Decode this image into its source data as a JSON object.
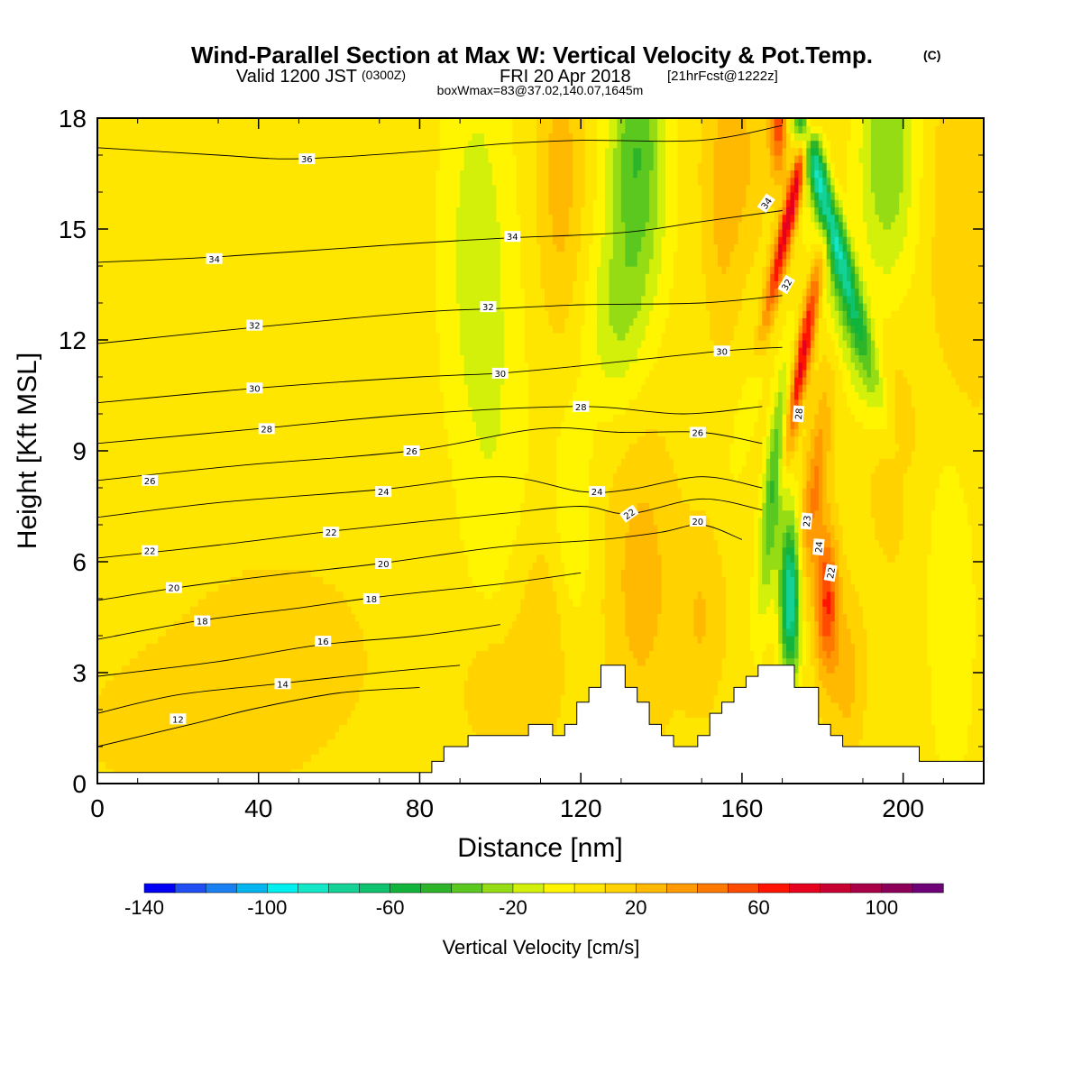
{
  "title": {
    "main": "Wind-Parallel Section at Max W: Vertical Velocity & Pot.Temp.",
    "main_mark": "(C)",
    "valid_a": "Valid 1200 JST",
    "valid_b": "(0300Z)",
    "valid_c": "FRI 20 Apr 2018",
    "valid_d": "[21hrFcst@1222z]",
    "box": "boxWmax=83@37.02,140.07,1645m"
  },
  "chart_data": {
    "type": "heatmap",
    "xlabel": "Distance [nm]",
    "ylabel": "Height [Kft MSL]",
    "xlim": [
      0,
      220
    ],
    "ylim": [
      0,
      18
    ],
    "xticks": [
      0,
      40,
      80,
      120,
      160,
      200
    ],
    "xtick_labels": [
      "0",
      "40",
      "80",
      "120",
      "160",
      "200"
    ],
    "yticks": [
      0,
      3,
      6,
      9,
      12,
      15,
      18
    ],
    "ytick_labels": [
      "0",
      "3",
      "6",
      "9",
      "12",
      "15",
      "18"
    ],
    "colorbar": {
      "label": "Vertical Velocity [cm/s]",
      "levels": [
        -140,
        -130,
        -120,
        -110,
        -100,
        -90,
        -80,
        -70,
        -60,
        -50,
        -40,
        -30,
        -20,
        -10,
        0,
        10,
        20,
        30,
        40,
        50,
        60,
        70,
        80,
        90,
        100,
        110,
        120
      ],
      "colors": [
        "#0000f5",
        "#1f4ef2",
        "#1a7ff0",
        "#05b5f0",
        "#00f0f0",
        "#14e6c8",
        "#14d296",
        "#0fc36e",
        "#12b43c",
        "#2db428",
        "#5ac81e",
        "#96dc14",
        "#d2f00a",
        "#fff500",
        "#ffe600",
        "#ffd200",
        "#ffb900",
        "#ff9b00",
        "#ff7800",
        "#ff4b00",
        "#ff1400",
        "#e6001e",
        "#c80032",
        "#aa0046",
        "#8c005a",
        "#6e0078"
      ],
      "tick_values": [
        -140,
        -100,
        -60,
        -20,
        20,
        60,
        100
      ],
      "tick_labels": [
        "-140",
        "-100",
        "-60",
        "-20",
        "20",
        "60",
        "100"
      ]
    },
    "terrain": [
      [
        0,
        0.3
      ],
      [
        83,
        0.3
      ],
      [
        83,
        0.6
      ],
      [
        86,
        0.6
      ],
      [
        86,
        1.0
      ],
      [
        92,
        1.0
      ],
      [
        92,
        1.3
      ],
      [
        107,
        1.3
      ],
      [
        107,
        1.6
      ],
      [
        113,
        1.6
      ],
      [
        113,
        1.3
      ],
      [
        116,
        1.3
      ],
      [
        116,
        1.6
      ],
      [
        119,
        1.6
      ],
      [
        119,
        2.2
      ],
      [
        122,
        2.2
      ],
      [
        122,
        2.6
      ],
      [
        125,
        2.6
      ],
      [
        125,
        3.2
      ],
      [
        131,
        3.2
      ],
      [
        131,
        2.6
      ],
      [
        134,
        2.6
      ],
      [
        134,
        2.2
      ],
      [
        137,
        2.2
      ],
      [
        137,
        1.6
      ],
      [
        140,
        1.6
      ],
      [
        140,
        1.3
      ],
      [
        143,
        1.3
      ],
      [
        143,
        1.0
      ],
      [
        149,
        1.0
      ],
      [
        149,
        1.3
      ],
      [
        152,
        1.3
      ],
      [
        152,
        1.9
      ],
      [
        155,
        1.9
      ],
      [
        155,
        2.2
      ],
      [
        158,
        2.2
      ],
      [
        158,
        2.6
      ],
      [
        161,
        2.6
      ],
      [
        161,
        2.9
      ],
      [
        164,
        2.9
      ],
      [
        164,
        3.2
      ],
      [
        173,
        3.2
      ],
      [
        173,
        2.6
      ],
      [
        179,
        2.6
      ],
      [
        179,
        1.6
      ],
      [
        182,
        1.6
      ],
      [
        182,
        1.3
      ],
      [
        185,
        1.3
      ],
      [
        185,
        1.0
      ],
      [
        204,
        1.0
      ],
      [
        204,
        0.6
      ],
      [
        220,
        0.6
      ]
    ],
    "velocity_background": 5,
    "velocity_features": [
      {
        "x": 172,
        "y": 5.0,
        "sx": 1.8,
        "sy": 1.5,
        "w": -90,
        "tilt": 0.0
      },
      {
        "x": 168,
        "y": 8.0,
        "sx": 1.8,
        "sy": 2.2,
        "w": -55,
        "tilt": 0.9
      },
      {
        "x": 162,
        "y": 10.5,
        "sx": 1.8,
        "sy": 1.5,
        "w": -20,
        "tilt": 1.8
      },
      {
        "x": 181,
        "y": 5.0,
        "sx": 2.0,
        "sy": 1.4,
        "w": 55,
        "tilt": 0.0
      },
      {
        "x": 178,
        "y": 8.0,
        "sx": 2.0,
        "sy": 2.0,
        "w": 35,
        "tilt": 1.0
      },
      {
        "x": 175,
        "y": 11.5,
        "sx": 1.4,
        "sy": 2.2,
        "w": 70,
        "tilt": 1.6
      },
      {
        "x": 172,
        "y": 15.5,
        "sx": 1.4,
        "sy": 2.5,
        "w": 75,
        "tilt": 2.0
      },
      {
        "x": 169,
        "y": 17.8,
        "sx": 1.5,
        "sy": 1.0,
        "w": 50,
        "tilt": 0.0
      },
      {
        "x": 180,
        "y": 16.0,
        "sx": 2.0,
        "sy": 3.0,
        "w": -85,
        "tilt": -2.5
      },
      {
        "x": 186,
        "y": 12.5,
        "sx": 3.5,
        "sy": 2.2,
        "w": -25,
        "tilt": -2.5
      },
      {
        "x": 196,
        "y": 17.0,
        "sx": 5.0,
        "sy": 2.5,
        "w": -35,
        "tilt": 0.0
      },
      {
        "x": 134,
        "y": 17.0,
        "sx": 5.0,
        "sy": 3.0,
        "w": -45,
        "tilt": 0.0
      },
      {
        "x": 128,
        "y": 12.5,
        "sx": 5.0,
        "sy": 1.8,
        "w": -20,
        "tilt": 0.0
      },
      {
        "x": 94,
        "y": 14.5,
        "sx": 6.0,
        "sy": 4.0,
        "w": -20,
        "tilt": 0.0
      },
      {
        "x": 115,
        "y": 16.5,
        "sx": 4.0,
        "sy": 3.0,
        "w": 20,
        "tilt": 0.0
      },
      {
        "x": 158,
        "y": 17.0,
        "sx": 5.0,
        "sy": 2.0,
        "w": 20,
        "tilt": 0.0
      },
      {
        "x": 155,
        "y": 14.0,
        "sx": 3.0,
        "sy": 2.0,
        "w": 10,
        "tilt": 0.0
      },
      {
        "x": 118,
        "y": 7.0,
        "sx": 3.5,
        "sy": 2.5,
        "w": -15,
        "tilt": 0.0
      },
      {
        "x": 100,
        "y": 8.0,
        "sx": 6.0,
        "sy": 4.0,
        "w": -10,
        "tilt": 0.0
      },
      {
        "x": 135,
        "y": 5.5,
        "sx": 6.0,
        "sy": 3.0,
        "w": 20,
        "tilt": 0.0
      },
      {
        "x": 150,
        "y": 4.5,
        "sx": 4.0,
        "sy": 1.8,
        "w": 15,
        "tilt": 0.0
      },
      {
        "x": 110,
        "y": 4.0,
        "sx": 6.0,
        "sy": 2.0,
        "w": 15,
        "tilt": 0.0
      },
      {
        "x": 98,
        "y": 2.5,
        "sx": 5.0,
        "sy": 1.2,
        "w": 15,
        "tilt": 0.0
      },
      {
        "x": 45,
        "y": 3.5,
        "sx": 18.0,
        "sy": 2.0,
        "w": 10,
        "tilt": 0.0
      },
      {
        "x": 20,
        "y": 1.5,
        "sx": 18.0,
        "sy": 1.5,
        "w": 10,
        "tilt": 0.0
      },
      {
        "x": 212,
        "y": 5.0,
        "sx": 4.0,
        "sy": 3.5,
        "w": -15,
        "tilt": 0.0
      },
      {
        "x": 215,
        "y": 15.0,
        "sx": 6.0,
        "sy": 4.0,
        "w": 15,
        "tilt": 0.0
      },
      {
        "x": 197,
        "y": 9.0,
        "sx": 4.0,
        "sy": 2.0,
        "w": 15,
        "tilt": 0.0
      },
      {
        "x": 186,
        "y": 3.0,
        "sx": 3.0,
        "sy": 1.5,
        "w": 20,
        "tilt": 0.0
      }
    ],
    "theta_lines": [
      {
        "value": 12,
        "points": [
          [
            0,
            1.0
          ],
          [
            25,
            1.65
          ],
          [
            40,
            2.05
          ],
          [
            60,
            2.45
          ],
          [
            80,
            2.6
          ]
        ]
      },
      {
        "value": 14,
        "points": [
          [
            0,
            1.9
          ],
          [
            20,
            2.4
          ],
          [
            45,
            2.7
          ],
          [
            70,
            3.0
          ],
          [
            90,
            3.2
          ]
        ]
      },
      {
        "value": 16,
        "points": [
          [
            0,
            2.9
          ],
          [
            30,
            3.3
          ],
          [
            55,
            3.75
          ],
          [
            80,
            4.0
          ],
          [
            100,
            4.3
          ]
        ]
      },
      {
        "value": 18,
        "points": [
          [
            0,
            3.9
          ],
          [
            25,
            4.4
          ],
          [
            50,
            4.75
          ],
          [
            70,
            5.05
          ],
          [
            100,
            5.4
          ],
          [
            120,
            5.7
          ]
        ]
      },
      {
        "value": 20,
        "points": [
          [
            0,
            4.95
          ],
          [
            20,
            5.3
          ],
          [
            45,
            5.65
          ],
          [
            70,
            5.95
          ],
          [
            100,
            6.4
          ],
          [
            125,
            6.6
          ],
          [
            140,
            6.8
          ],
          [
            150,
            7.0
          ],
          [
            160,
            6.6
          ]
        ]
      },
      {
        "value": 22,
        "points": [
          [
            0,
            6.1
          ],
          [
            30,
            6.45
          ],
          [
            60,
            6.85
          ],
          [
            100,
            7.3
          ],
          [
            120,
            7.5
          ],
          [
            132,
            7.3
          ],
          [
            150,
            7.7
          ],
          [
            165,
            7.4
          ]
        ]
      },
      {
        "value": 24,
        "points": [
          [
            0,
            7.2
          ],
          [
            30,
            7.6
          ],
          [
            70,
            7.95
          ],
          [
            100,
            8.3
          ],
          [
            120,
            7.9
          ],
          [
            132,
            7.95
          ],
          [
            150,
            8.3
          ],
          [
            165,
            8.0
          ]
        ]
      },
      {
        "value": 26,
        "points": [
          [
            0,
            8.2
          ],
          [
            35,
            8.6
          ],
          [
            78,
            9.0
          ],
          [
            110,
            9.6
          ],
          [
            130,
            9.5
          ],
          [
            150,
            9.5
          ],
          [
            165,
            9.2
          ]
        ]
      },
      {
        "value": 28,
        "points": [
          [
            0,
            9.2
          ],
          [
            40,
            9.6
          ],
          [
            80,
            10.0
          ],
          [
            120,
            10.2
          ],
          [
            145,
            10.0
          ],
          [
            165,
            10.2
          ]
        ]
      },
      {
        "value": 30,
        "points": [
          [
            0,
            10.3
          ],
          [
            40,
            10.7
          ],
          [
            80,
            11.0
          ],
          [
            100,
            11.1
          ],
          [
            120,
            11.3
          ],
          [
            155,
            11.7
          ],
          [
            170,
            11.8
          ]
        ]
      },
      {
        "value": 32,
        "points": [
          [
            0,
            11.9
          ],
          [
            40,
            12.35
          ],
          [
            80,
            12.75
          ],
          [
            100,
            12.85
          ],
          [
            120,
            12.95
          ],
          [
            150,
            13.0
          ],
          [
            170,
            13.2
          ]
        ]
      },
      {
        "value": 34,
        "points": [
          [
            0,
            14.1
          ],
          [
            30,
            14.25
          ],
          [
            70,
            14.55
          ],
          [
            100,
            14.75
          ],
          [
            130,
            14.9
          ],
          [
            150,
            15.2
          ],
          [
            170,
            15.5
          ]
        ]
      },
      {
        "value": 36,
        "points": [
          [
            0,
            17.2
          ],
          [
            30,
            17.0
          ],
          [
            50,
            16.9
          ],
          [
            80,
            17.1
          ],
          [
            100,
            17.3
          ],
          [
            120,
            17.4
          ],
          [
            150,
            17.4
          ],
          [
            170,
            17.8
          ]
        ]
      }
    ],
    "theta_labels": [
      {
        "text": "36",
        "x": 52,
        "y": 16.9,
        "angle": 0
      },
      {
        "text": "34",
        "x": 29,
        "y": 14.2,
        "angle": 0
      },
      {
        "text": "34",
        "x": 103,
        "y": 14.8,
        "angle": 0
      },
      {
        "text": "34",
        "x": 166,
        "y": 15.7,
        "angle": -55
      },
      {
        "text": "32",
        "x": 39,
        "y": 12.4,
        "angle": 0
      },
      {
        "text": "32",
        "x": 97,
        "y": 12.9,
        "angle": 0
      },
      {
        "text": "32",
        "x": 171,
        "y": 13.5,
        "angle": -60
      },
      {
        "text": "30",
        "x": 39,
        "y": 10.7,
        "angle": 0
      },
      {
        "text": "30",
        "x": 100,
        "y": 11.1,
        "angle": 0
      },
      {
        "text": "30",
        "x": 155,
        "y": 11.7,
        "angle": 0
      },
      {
        "text": "28",
        "x": 42,
        "y": 9.6,
        "angle": 0
      },
      {
        "text": "28",
        "x": 120,
        "y": 10.2,
        "angle": 0
      },
      {
        "text": "28",
        "x": 174,
        "y": 10.0,
        "angle": -85
      },
      {
        "text": "26",
        "x": 13,
        "y": 8.2,
        "angle": 0
      },
      {
        "text": "26",
        "x": 78,
        "y": 9.0,
        "angle": 0
      },
      {
        "text": "26",
        "x": 149,
        "y": 9.5,
        "angle": 0
      },
      {
        "text": "24",
        "x": 71,
        "y": 7.9,
        "angle": 0
      },
      {
        "text": "24",
        "x": 124,
        "y": 7.9,
        "angle": 0
      },
      {
        "text": "24",
        "x": 179,
        "y": 6.4,
        "angle": -85
      },
      {
        "text": "22",
        "x": 13,
        "y": 6.3,
        "angle": 0
      },
      {
        "text": "22",
        "x": 58,
        "y": 6.8,
        "angle": 0
      },
      {
        "text": "22",
        "x": 132,
        "y": 7.3,
        "angle": -35
      },
      {
        "text": "22",
        "x": 182,
        "y": 5.7,
        "angle": -80
      },
      {
        "text": "20",
        "x": 19,
        "y": 5.3,
        "angle": 0
      },
      {
        "text": "20",
        "x": 71,
        "y": 5.95,
        "angle": 0
      },
      {
        "text": "20",
        "x": 149,
        "y": 7.1,
        "angle": 0
      },
      {
        "text": "23",
        "x": 176,
        "y": 7.1,
        "angle": -85
      },
      {
        "text": "18",
        "x": 26,
        "y": 4.4,
        "angle": 0
      },
      {
        "text": "18",
        "x": 68,
        "y": 5.0,
        "angle": 0
      },
      {
        "text": "16",
        "x": 56,
        "y": 3.85,
        "angle": 0
      },
      {
        "text": "14",
        "x": 46,
        "y": 2.7,
        "angle": 0
      },
      {
        "text": "12",
        "x": 20,
        "y": 1.75,
        "angle": 0
      }
    ]
  }
}
